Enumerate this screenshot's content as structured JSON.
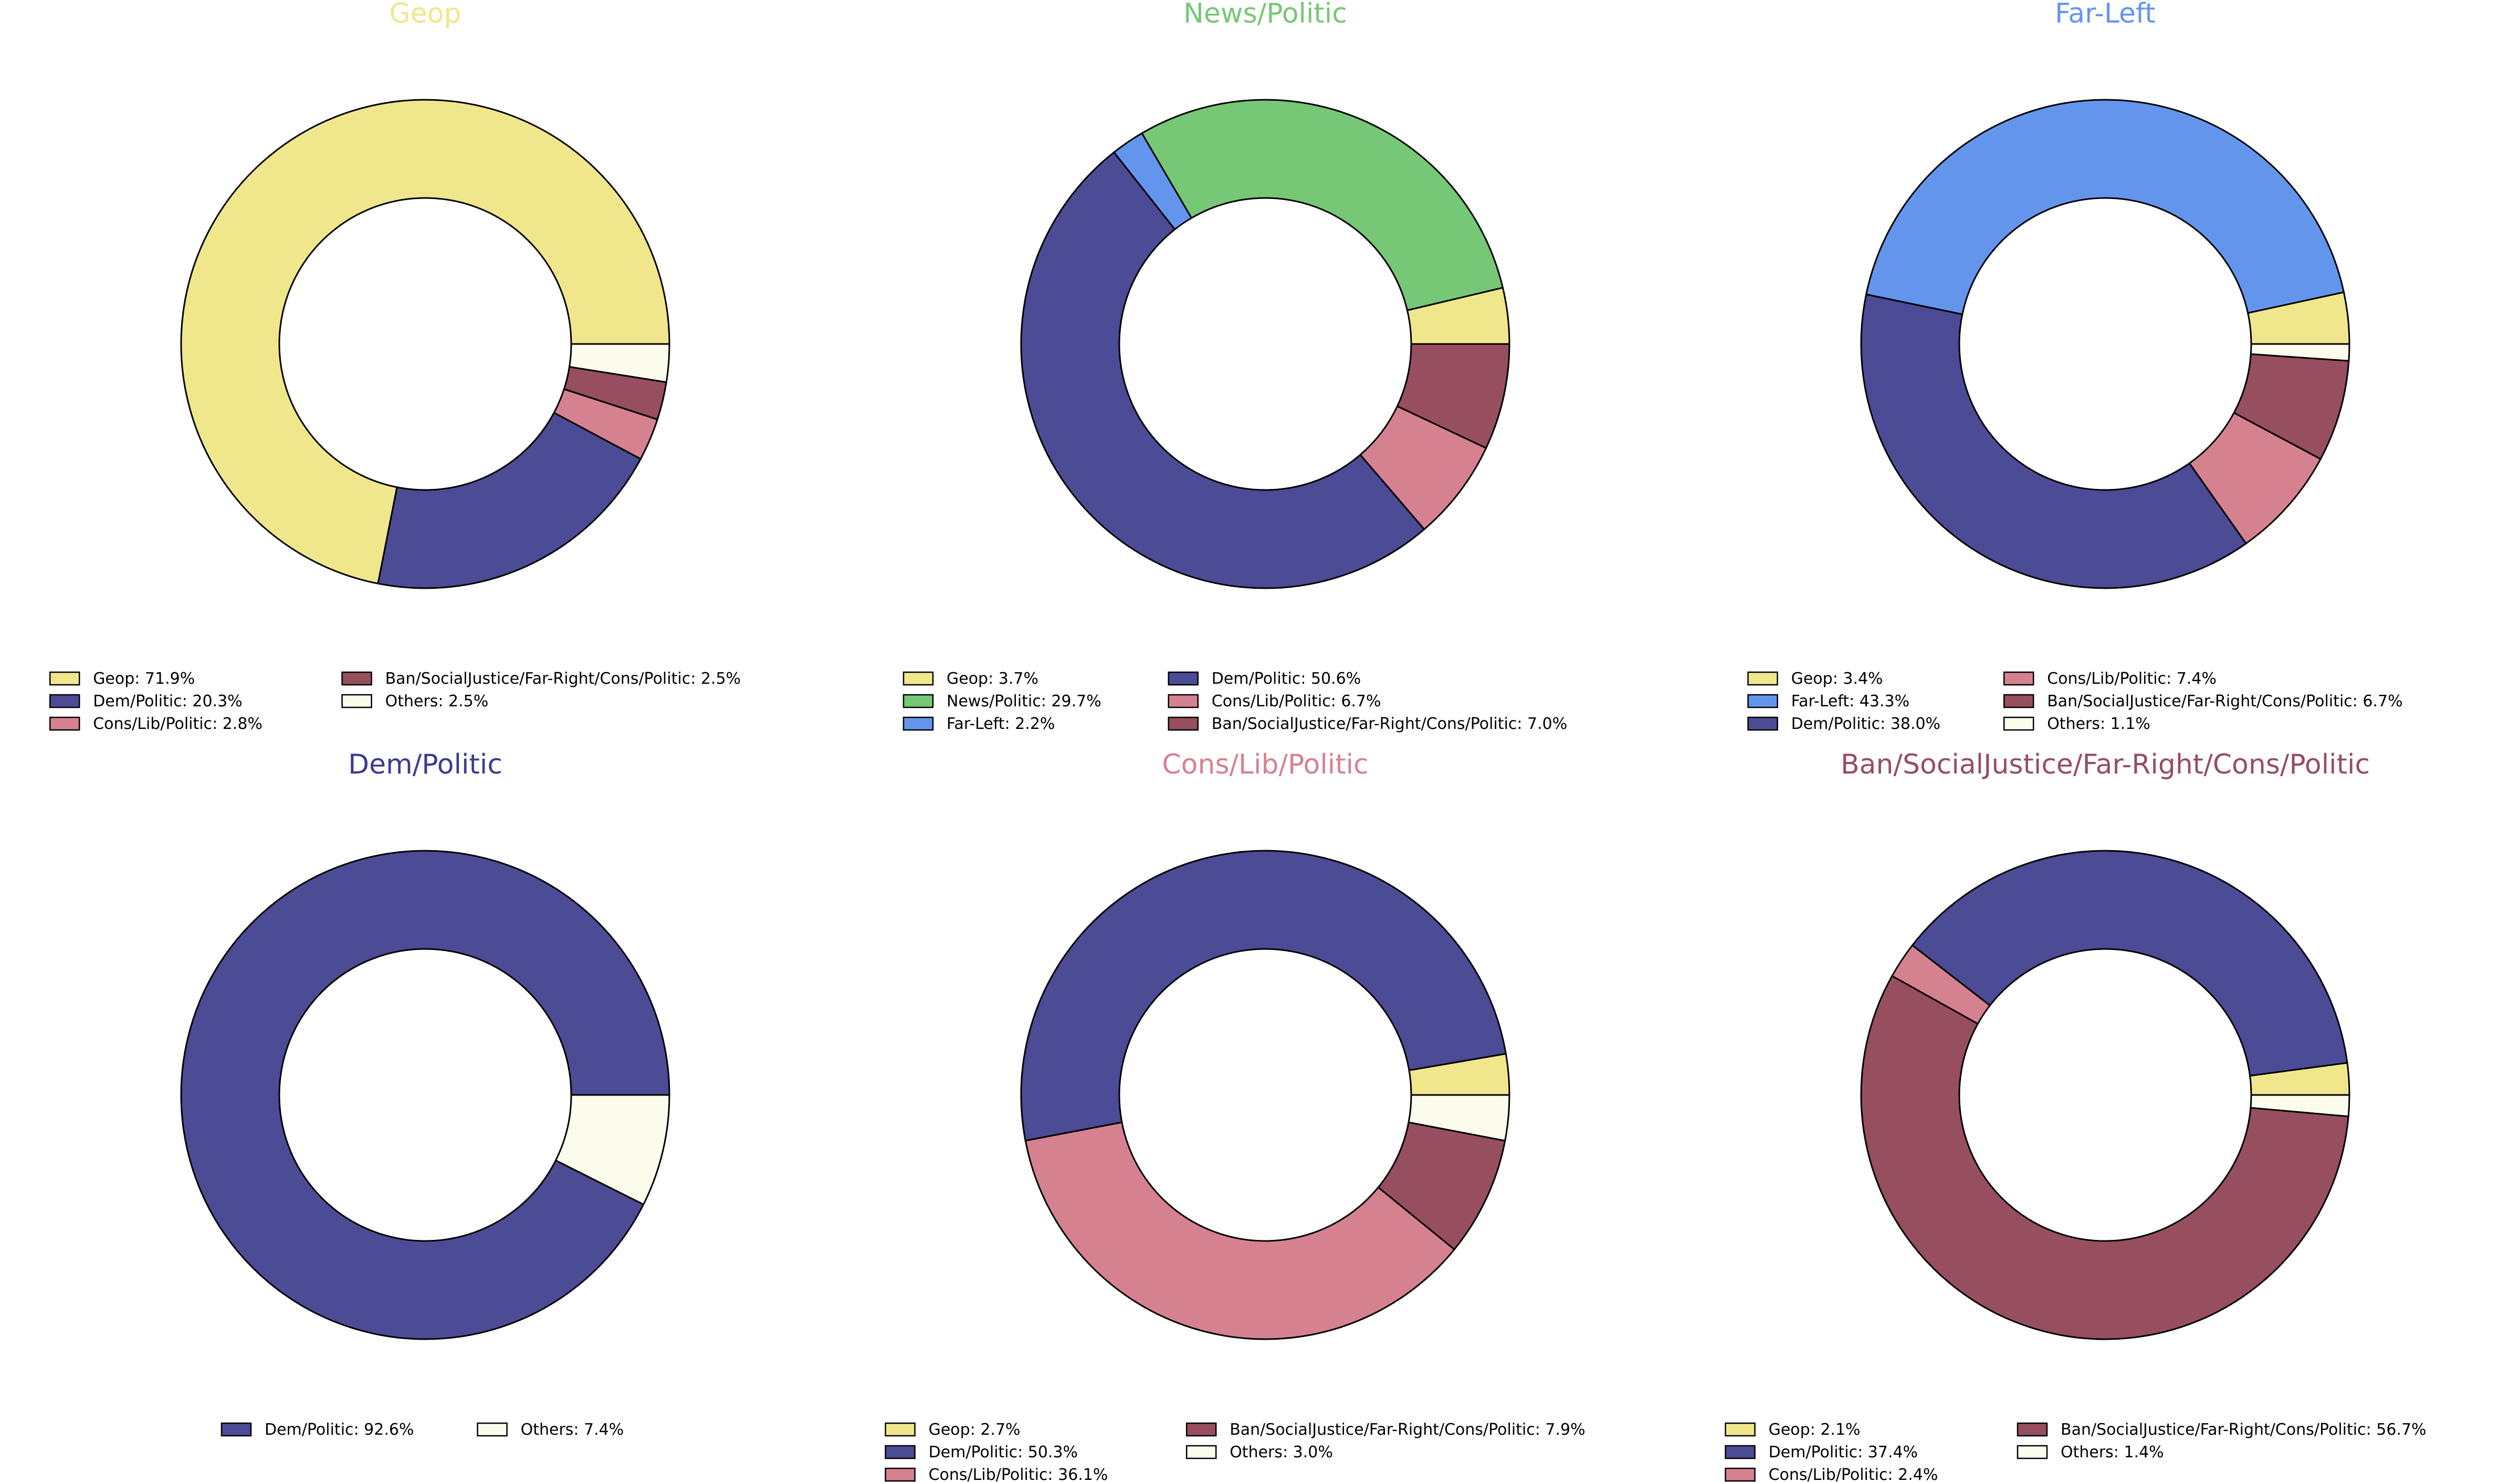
{
  "colors": {
    "Geop": "#f0e68c",
    "News/Politic": "#76c776",
    "Far-Left": "#6495ed",
    "Dem/Politic": "#4b4b96",
    "Cons/Lib/Politic": "#d68190",
    "Ban/SocialJustice/Far-Right/Cons/Politic": "#974e5f",
    "Others": "#fcfced"
  },
  "chart_data": [
    {
      "type": "pie",
      "title": "Geop",
      "title_color": "#f0e68c",
      "slices": [
        {
          "label": "Geop",
          "value": 71.9
        },
        {
          "label": "Dem/Politic",
          "value": 20.3
        },
        {
          "label": "Cons/Lib/Politic",
          "value": 2.8
        },
        {
          "label": "Ban/SocialJustice/Far-Right/Cons/Politic",
          "value": 2.5
        },
        {
          "label": "Others",
          "value": 2.5
        }
      ],
      "legend_columns": [
        [
          "Geop: 71.9%",
          "Dem/Politic: 20.3%",
          "Cons/Lib/Politic: 2.8%"
        ],
        [
          "Ban/SocialJustice/Far-Right/Cons/Politic: 2.5%",
          "Others: 2.5%"
        ]
      ]
    },
    {
      "type": "pie",
      "title": "News/Politic",
      "title_color": "#76c776",
      "slices": [
        {
          "label": "Geop",
          "value": 3.7
        },
        {
          "label": "News/Politic",
          "value": 29.7
        },
        {
          "label": "Far-Left",
          "value": 2.2
        },
        {
          "label": "Dem/Politic",
          "value": 50.6
        },
        {
          "label": "Cons/Lib/Politic",
          "value": 6.7
        },
        {
          "label": "Ban/SocialJustice/Far-Right/Cons/Politic",
          "value": 7.0
        }
      ],
      "legend_columns": [
        [
          "Geop: 3.7%",
          "News/Politic: 29.7%",
          "Far-Left: 2.2%"
        ],
        [
          "Dem/Politic: 50.6%",
          "Cons/Lib/Politic: 6.7%",
          "Ban/SocialJustice/Far-Right/Cons/Politic: 7.0%"
        ]
      ]
    },
    {
      "type": "pie",
      "title": "Far-Left",
      "title_color": "#6495ed",
      "slices": [
        {
          "label": "Geop",
          "value": 3.4
        },
        {
          "label": "Far-Left",
          "value": 43.3
        },
        {
          "label": "Dem/Politic",
          "value": 38.0
        },
        {
          "label": "Cons/Lib/Politic",
          "value": 7.4
        },
        {
          "label": "Ban/SocialJustice/Far-Right/Cons/Politic",
          "value": 6.7
        },
        {
          "label": "Others",
          "value": 1.1
        }
      ],
      "legend_columns": [
        [
          "Geop: 3.4%",
          "Far-Left: 43.3%",
          "Dem/Politic: 38.0%"
        ],
        [
          "Cons/Lib/Politic: 7.4%",
          "Ban/SocialJustice/Far-Right/Cons/Politic: 6.7%",
          "Others: 1.1%"
        ]
      ]
    },
    {
      "type": "pie",
      "title": "Dem/Politic",
      "title_color": "#3c3c8c",
      "slices": [
        {
          "label": "Dem/Politic",
          "value": 92.6
        },
        {
          "label": "Others",
          "value": 7.4
        }
      ],
      "legend_columns": [
        [
          "Dem/Politic: 92.6%"
        ],
        [
          "Others: 7.4%"
        ]
      ]
    },
    {
      "type": "pie",
      "title": "Cons/Lib/Politic",
      "title_color": "#d68190",
      "slices": [
        {
          "label": "Geop",
          "value": 2.7
        },
        {
          "label": "Dem/Politic",
          "value": 50.3
        },
        {
          "label": "Cons/Lib/Politic",
          "value": 36.1
        },
        {
          "label": "Ban/SocialJustice/Far-Right/Cons/Politic",
          "value": 7.9
        },
        {
          "label": "Others",
          "value": 3.0
        }
      ],
      "legend_columns": [
        [
          "Geop: 2.7%",
          "Dem/Politic: 50.3%",
          "Cons/Lib/Politic: 36.1%"
        ],
        [
          "Ban/SocialJustice/Far-Right/Cons/Politic: 7.9%",
          "Others: 3.0%"
        ]
      ]
    },
    {
      "type": "pie",
      "title": "Ban/SocialJustice/Far-Right/Cons/Politic",
      "title_color": "#974e5f",
      "slices": [
        {
          "label": "Geop",
          "value": 2.1
        },
        {
          "label": "Dem/Politic",
          "value": 37.4
        },
        {
          "label": "Cons/Lib/Politic",
          "value": 2.4
        },
        {
          "label": "Ban/SocialJustice/Far-Right/Cons/Politic",
          "value": 56.7
        },
        {
          "label": "Others",
          "value": 1.4
        }
      ],
      "legend_columns": [
        [
          "Geop: 2.1%",
          "Dem/Politic: 37.4%",
          "Cons/Lib/Politic: 2.4%"
        ],
        [
          "Ban/SocialJustice/Far-Right/Cons/Politic: 56.7%",
          "Others: 1.4%"
        ]
      ]
    }
  ]
}
